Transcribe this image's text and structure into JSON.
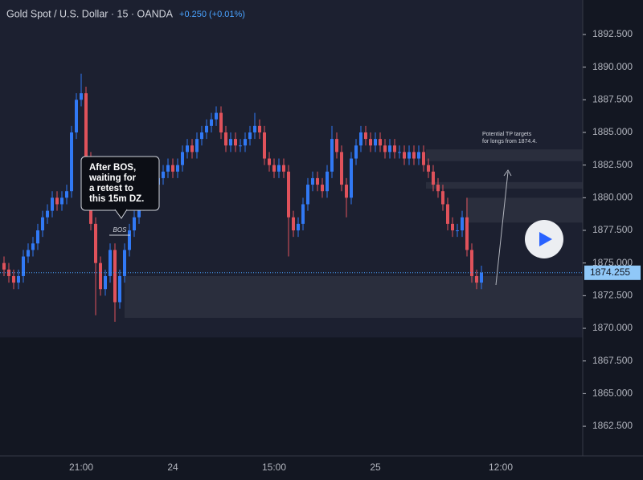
{
  "chart_data": {
    "type": "candlestick",
    "title": "Gold Spot / U.S. Dollar · 15 · OANDA",
    "change": "+0.250 (+0.01%)",
    "categories": [
      null,
      null,
      null,
      null,
      null,
      null,
      null,
      null,
      null,
      null,
      null,
      null,
      null,
      null,
      null,
      null,
      "21:00",
      null,
      null,
      null,
      null,
      null,
      null,
      null,
      null,
      null,
      null,
      null,
      null,
      null,
      null,
      null,
      null,
      null,
      null,
      "24",
      null,
      null,
      null,
      null,
      null,
      null,
      null,
      null,
      null,
      null,
      null,
      null,
      null,
      null,
      null,
      null,
      null,
      null,
      null,
      null,
      "15:00",
      null,
      null,
      null,
      null,
      null,
      null,
      null,
      null,
      null,
      null,
      null,
      null,
      null,
      null,
      null,
      null,
      null,
      null,
      null,
      null,
      "25",
      null,
      null,
      null,
      null,
      null,
      null,
      null,
      null,
      null,
      null,
      null,
      null,
      null,
      null,
      null,
      null,
      null,
      null,
      null,
      null,
      null,
      null,
      null,
      null,
      null,
      "12:00"
    ],
    "open": [
      1875,
      1874.5,
      1874,
      1873.5,
      1874,
      1875.5,
      1876,
      1876.5,
      1877.5,
      1878.5,
      1879,
      1880,
      1879.5,
      1880,
      1880.5,
      1885,
      1887.5,
      1888,
      1883,
      1878,
      1875,
      1873,
      1874,
      1876,
      1872,
      1874,
      1876,
      1877.5,
      1878.5,
      1879.5,
      1880,
      1880.5,
      1881,
      1881.5,
      1882,
      1882.5,
      1882,
      1882.5,
      1883.5,
      1884,
      1883.5,
      1884.5,
      1885,
      1885.5,
      1886,
      1886.5,
      1885,
      1884,
      1884.5,
      1884,
      1884,
      1884.5,
      1885,
      1885.5,
      1885,
      1883,
      1882.5,
      1882,
      1882.5,
      1882,
      1878.5,
      1877.5,
      1878,
      1879.5,
      1881,
      1881.5,
      1881,
      1880.5,
      1882,
      1884.5,
      1883.5,
      1881,
      1880,
      1883,
      1884,
      1885,
      1884.5,
      1884,
      1884.5,
      1884,
      1883.5,
      1884,
      1883.5,
      1883.5,
      1883,
      1883.5,
      1883,
      1883.5,
      1882.5,
      1882,
      1881,
      1880.5,
      1879.5,
      1878,
      1877.5,
      1877.5,
      1878.5,
      1876,
      1874,
      1873.5,
      null,
      null,
      null,
      null
    ],
    "high": [
      1875.5,
      1875,
      1874.5,
      1874.5,
      1876,
      1876.5,
      1877,
      1878,
      1879,
      1879.5,
      1880.5,
      1880.5,
      1880.5,
      1881,
      1885.5,
      1888,
      1889.5,
      1888.5,
      1883.5,
      1878.5,
      1875.5,
      1874.5,
      1876.5,
      1876.5,
      1874.5,
      1876.5,
      1878,
      1879,
      1880,
      1880.5,
      1881,
      1881.5,
      1882,
      1882.5,
      1883,
      1883,
      1883,
      1884,
      1884.5,
      1884.5,
      1885,
      1885.5,
      1886,
      1886.5,
      1887,
      1887,
      1885.5,
      1885,
      1885,
      1884.5,
      1885,
      1885.5,
      1886.5,
      1886,
      1885.5,
      1883.5,
      1883,
      1883,
      1883,
      1882.5,
      1879,
      1878.5,
      1880,
      1881.5,
      1882,
      1882,
      1881.5,
      1882.5,
      1885.5,
      1885,
      1884,
      1881.5,
      1883.5,
      1884.5,
      1885.5,
      1885.5,
      1885,
      1885,
      1885,
      1884.5,
      1884.5,
      1884.5,
      1884,
      1884,
      1884,
      1884,
      1884,
      1884,
      1883,
      1882.5,
      1881.5,
      1881,
      1880,
      1878.5,
      1878,
      1879,
      1880,
      1876.5,
      1874.5,
      1874.8,
      null,
      null,
      null,
      null
    ],
    "low": [
      1874,
      1873.5,
      1873,
      1873,
      1873.5,
      1875,
      1875.5,
      1876,
      1877,
      1878,
      1878.5,
      1879,
      1879,
      1879.5,
      1880,
      1884.5,
      1887,
      1882.5,
      1877.5,
      1871,
      1872.5,
      1872.5,
      1873.5,
      1870.5,
      1871.5,
      1873.5,
      1875.5,
      1877,
      1878,
      1879,
      1879.5,
      1880,
      1880.5,
      1881,
      1881.5,
      1881.5,
      1881.5,
      1882,
      1883,
      1883,
      1883,
      1884,
      1884.5,
      1885,
      1885.5,
      1884.5,
      1883.5,
      1883.5,
      1883.5,
      1883.5,
      1883.5,
      1884,
      1884.5,
      1884.5,
      1882.5,
      1882,
      1881.5,
      1881.5,
      1881.5,
      1875.5,
      1877,
      1877,
      1877.5,
      1879,
      1880.5,
      1880.5,
      1880,
      1880,
      1881.5,
      1883,
      1880.5,
      1878.5,
      1879.5,
      1882.5,
      1883.5,
      1884,
      1883.5,
      1883.5,
      1883.5,
      1883,
      1883,
      1883,
      1883,
      1882.5,
      1882.5,
      1882.5,
      1882.5,
      1882,
      1881.5,
      1880.5,
      1880,
      1879,
      1877.5,
      1877,
      1877,
      1877,
      1875.5,
      1873.5,
      1873,
      1873,
      null,
      null,
      null,
      null
    ],
    "close": [
      1874.5,
      1874,
      1873.5,
      1874,
      1875.5,
      1876,
      1876.5,
      1877.5,
      1878.5,
      1879,
      1880,
      1879.5,
      1880,
      1880.5,
      1885,
      1887.5,
      1888,
      1883,
      1878,
      1875,
      1873,
      1874,
      1876,
      1872,
      1874,
      1876,
      1877.5,
      1878.5,
      1879.5,
      1880,
      1880.5,
      1881,
      1881.5,
      1882,
      1882.5,
      1882,
      1882.5,
      1883.5,
      1884,
      1883.5,
      1884.5,
      1885,
      1885.5,
      1886,
      1886.5,
      1885,
      1884,
      1884.5,
      1884,
      1884,
      1884.5,
      1885,
      1885.5,
      1885,
      1883,
      1882.5,
      1882,
      1882.5,
      1882,
      1878.5,
      1877.5,
      1878,
      1879.5,
      1881,
      1881.5,
      1881,
      1880.5,
      1882,
      1884.5,
      1883.5,
      1881,
      1880,
      1883,
      1884,
      1885,
      1884.5,
      1884,
      1884.5,
      1884,
      1883.5,
      1884,
      1883.5,
      1883.5,
      1883,
      1883.5,
      1883,
      1883.5,
      1882.5,
      1882,
      1881,
      1880.5,
      1879.5,
      1878,
      1877.5,
      1877.5,
      1878.5,
      1876,
      1874,
      1873.5,
      1874.255,
      null,
      null,
      null,
      null
    ],
    "up_color": "#3179f5",
    "down_color": "#e0525b",
    "ylim": [
      1860.23,
      1895.14
    ],
    "yticks": [
      {
        "value": 1862.5,
        "label": "1862.500"
      },
      {
        "value": 1865,
        "label": "1865.000"
      },
      {
        "value": 1867.5,
        "label": "1867.500"
      },
      {
        "value": 1870,
        "label": "1870.000"
      },
      {
        "value": 1872.5,
        "label": "1872.500"
      },
      {
        "value": 1875,
        "label": "1875.000"
      },
      {
        "value": 1877.5,
        "label": "1877.500"
      },
      {
        "value": 1880,
        "label": "1880.000"
      },
      {
        "value": 1882.5,
        "label": "1882.500"
      },
      {
        "value": 1885,
        "label": "1885.000"
      },
      {
        "value": 1887.5,
        "label": "1887.500"
      },
      {
        "value": 1890,
        "label": "1890.000"
      },
      {
        "value": 1892.5,
        "label": "1892.500"
      }
    ],
    "grid": false,
    "zones": [
      {
        "from": 1869.3,
        "to": 1895.14
      },
      {
        "from": 1870.8,
        "to": 1874.0
      },
      {
        "from": 1882.8,
        "to": 1883.7
      },
      {
        "from": 1880.7,
        "to": 1881.2
      },
      {
        "from": 1878.1,
        "to": 1880.0
      }
    ],
    "annotations": {
      "callout": [
        "After BOS,",
        "waiting for",
        "a retest to",
        "this 15m DZ."
      ],
      "bos": "BOS",
      "tp_note": [
        "Potential TP targets",
        "for longs from 1874.4."
      ]
    }
  }
}
